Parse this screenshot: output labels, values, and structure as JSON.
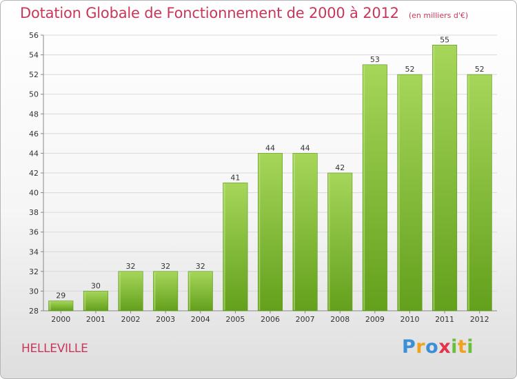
{
  "header": {
    "title": "Dotation Globale de Fonctionnement de 2000 à 2012",
    "unit": "(en milliers d'€)"
  },
  "footer": {
    "city": "HELLEVILLE",
    "logo_letters": [
      "P",
      "r",
      "o",
      "x",
      "i",
      "t",
      "i"
    ]
  },
  "colors": {
    "title": "#c8375a",
    "bar_top": "#a6d65a",
    "bar_bottom": "#63a01c"
  },
  "chart_data": {
    "type": "bar",
    "title": "Dotation Globale de Fonctionnement de 2000 à 2012",
    "subtitle": "(en milliers d'€)",
    "xlabel": "",
    "ylabel": "",
    "categories": [
      "2000",
      "2001",
      "2002",
      "2003",
      "2004",
      "2005",
      "2006",
      "2007",
      "2008",
      "2009",
      "2010",
      "2011",
      "2012"
    ],
    "values": [
      29,
      30,
      32,
      32,
      32,
      41,
      44,
      44,
      42,
      53,
      52,
      55,
      52
    ],
    "data_labels": [
      "29",
      "30",
      "32",
      "32",
      "32",
      "41",
      "44",
      "44",
      "42",
      "53",
      "52",
      "55",
      "52"
    ],
    "ylim": [
      28,
      56
    ],
    "yticks": [
      28,
      30,
      32,
      34,
      36,
      38,
      40,
      42,
      44,
      46,
      48,
      50,
      52,
      54,
      56
    ],
    "ytick_labels": [
      "28",
      "30",
      "32",
      "34",
      "36",
      "38",
      "40",
      "42",
      "44",
      "46",
      "48",
      "50",
      "52",
      "54",
      "56"
    ],
    "grid": true,
    "legend": "none"
  }
}
